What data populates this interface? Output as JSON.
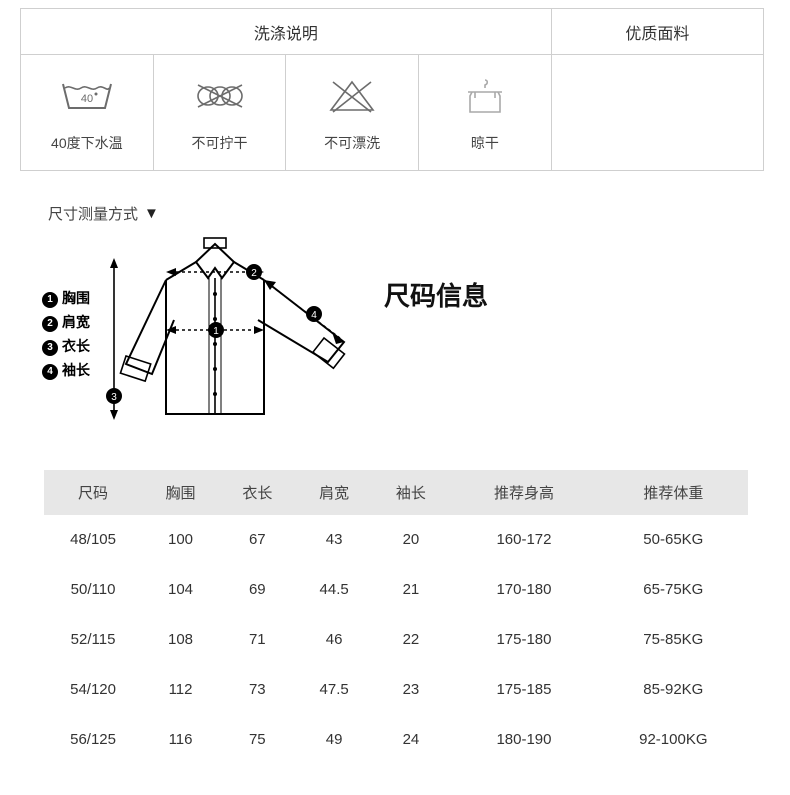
{
  "care": {
    "header_left": "洗涤说明",
    "header_right": "优质面料",
    "items": [
      {
        "name": "wash-40-icon",
        "label": "40度下水温",
        "temp": "40"
      },
      {
        "name": "no-twist-icon",
        "label": "不可拧干"
      },
      {
        "name": "no-bleach-icon",
        "label": "不可漂洗"
      },
      {
        "name": "hang-dry-icon",
        "label": "晾干"
      }
    ]
  },
  "measure_heading": "尺寸测量方式",
  "size_title": "尺码信息",
  "measurements": {
    "m1": "胸围",
    "m2": "肩宽",
    "m3": "衣长",
    "m4": "袖长"
  },
  "size_table": {
    "headers": {
      "size": "尺码",
      "chest": "胸围",
      "length": "衣长",
      "shoulder": "肩宽",
      "sleeve": "袖长",
      "height": "推荐身高",
      "weight": "推荐体重"
    },
    "rows": [
      {
        "size": "48/105",
        "chest": "100",
        "length": "67",
        "shoulder": "43",
        "sleeve": "20",
        "height": "160-172",
        "weight": "50-65KG"
      },
      {
        "size": "50/110",
        "chest": "104",
        "length": "69",
        "shoulder": "44.5",
        "sleeve": "21",
        "height": "170-180",
        "weight": "65-75KG"
      },
      {
        "size": "52/115",
        "chest": "108",
        "length": "71",
        "shoulder": "46",
        "sleeve": "22",
        "height": "175-180",
        "weight": "75-85KG"
      },
      {
        "size": "54/120",
        "chest": "112",
        "length": "73",
        "shoulder": "47.5",
        "sleeve": "23",
        "height": "175-185",
        "weight": "85-92KG"
      },
      {
        "size": "56/125",
        "chest": "116",
        "length": "75",
        "shoulder": "49",
        "sleeve": "24",
        "height": "180-190",
        "weight": "92-100KG"
      }
    ],
    "header_bg": "#e7e7e7",
    "border_color": "#cfcfcf",
    "text_color": "#333333",
    "font_size_header": 15,
    "font_size_cell": 15,
    "column_widths": {
      "size": 92,
      "chest": 72,
      "length": 72,
      "shoulder": 72,
      "sleeve": 72,
      "height": 140,
      "weight": 140
    }
  },
  "colors": {
    "page_bg": "#ffffff",
    "table_border": "#cfcfcf",
    "text": "#333333",
    "size_header_bg": "#e7e7e7",
    "icon_stroke": "#6c6c6c"
  }
}
